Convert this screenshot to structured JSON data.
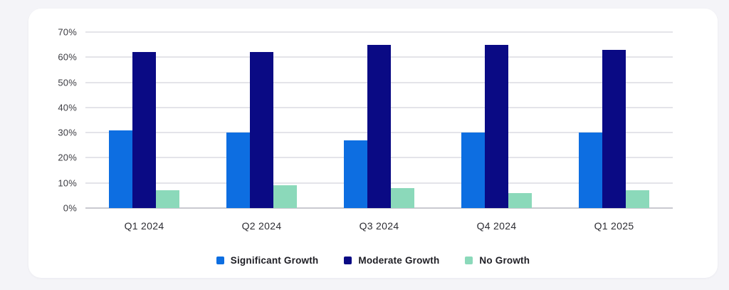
{
  "page": {
    "background_color": "#f4f4f8",
    "card_background_color": "#ffffff"
  },
  "chart_data": {
    "type": "bar",
    "title": "",
    "xlabel": "",
    "ylabel": "",
    "categories": [
      "Q1 2024",
      "Q2 2024",
      "Q3 2024",
      "Q4 2024",
      "Q1 2025"
    ],
    "series": [
      {
        "name": "Significant Growth",
        "color": "#0d6ee1",
        "values": [
          31,
          30,
          27,
          30,
          30
        ]
      },
      {
        "name": "Moderate Growth",
        "color": "#0a0a84",
        "values": [
          62,
          62,
          65,
          65,
          63
        ]
      },
      {
        "name": "No Growth",
        "color": "#8bd9ba",
        "values": [
          7,
          9,
          8,
          6,
          7
        ]
      }
    ],
    "y_axis": {
      "min": 0,
      "max": 70,
      "step": 10,
      "tick_suffix": "%",
      "tick_labels": [
        "0%",
        "10%",
        "20%",
        "30%",
        "40%",
        "50%",
        "60%",
        "70%"
      ]
    },
    "grid": true,
    "gridline_color": "#e4e4e9",
    "baseline_color": "#c9c9d0",
    "legend_position": "bottom"
  }
}
